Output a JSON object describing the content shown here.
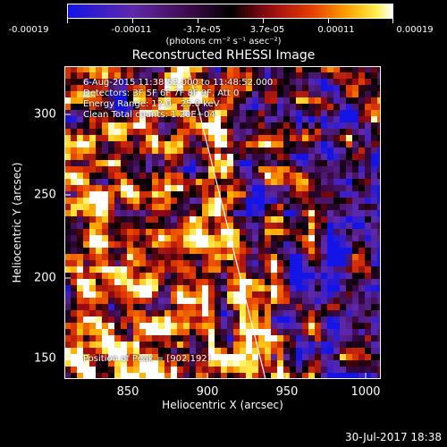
{
  "colorbar": {
    "tick_labels": [
      "-0.00019",
      "-0.00011",
      "-3.7e-05",
      "3.7e-05",
      "0.00011",
      "0.00019"
    ],
    "unit_label": "(photons cm⁻² s⁻¹ asec⁻²)"
  },
  "title": "Reconstructed RHESSI Image",
  "info": {
    "line1": "6-Aug-2015 11:38:52.000 to 11:48:52.000",
    "line2": "Detectors: 3F 5F 6F 7F 8F 9F, Att 0",
    "line3": "Energy Range: 12.0 - 25.0 keV",
    "line4": "Clean    Total counts: 1.20E+04",
    "peak": "Position of Peak = [902,192]"
  },
  "axes": {
    "xlabel": "Heliocentric X (arcsec)",
    "ylabel": "Heliocentric Y (arcsec)",
    "xticks": [
      "850",
      "900",
      "950",
      "1000"
    ],
    "yticks": [
      "150",
      "200",
      "250",
      "300"
    ]
  },
  "footer": "30-Jul-2017 18:38"
}
